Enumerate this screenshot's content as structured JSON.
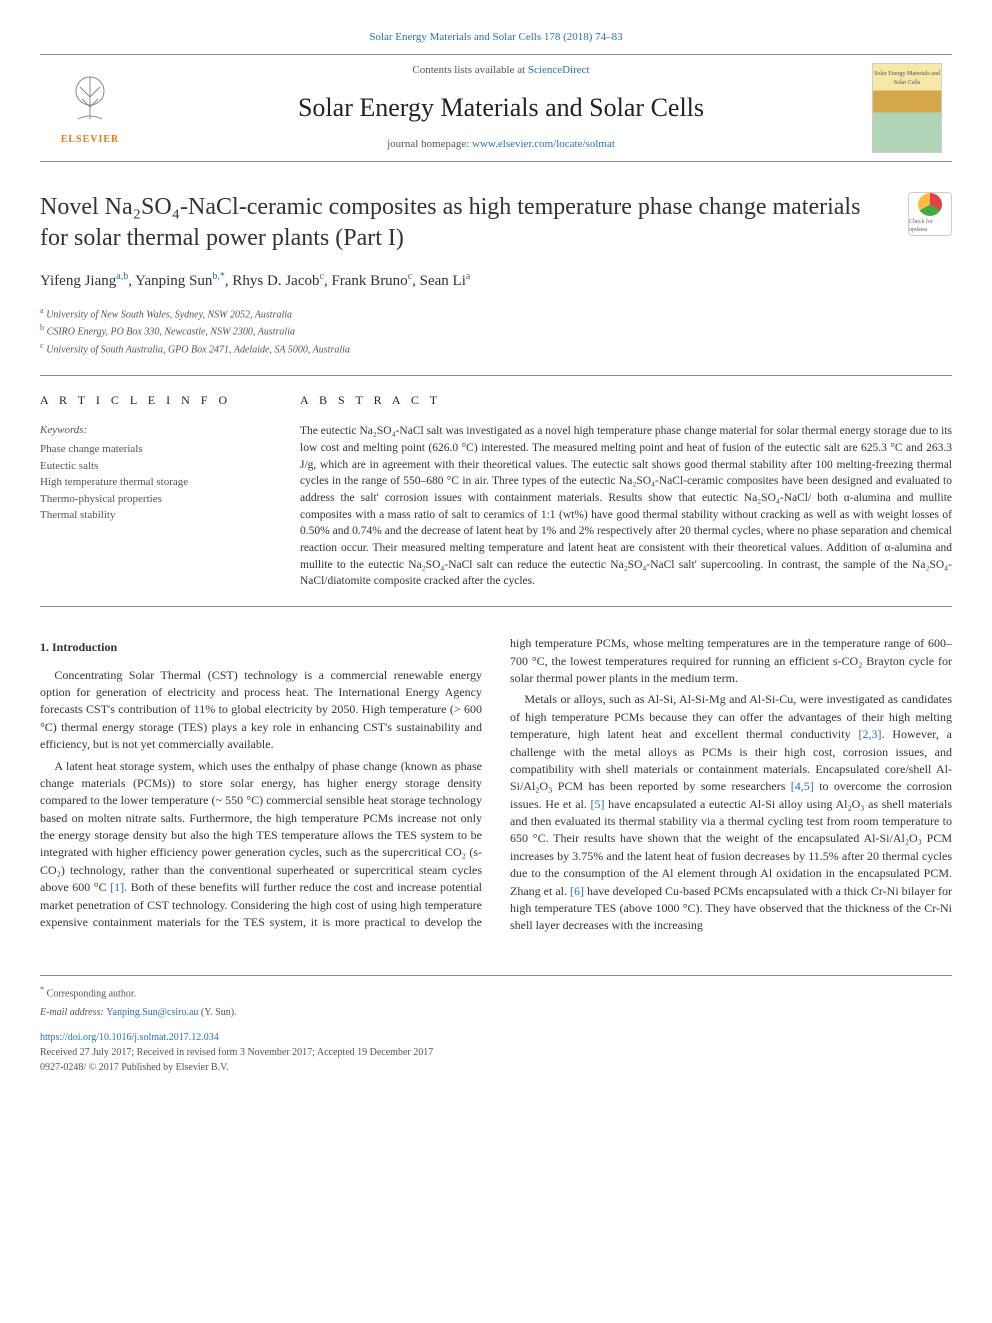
{
  "top_citation": "Solar Energy Materials and Solar Cells 178 (2018) 74–83",
  "header": {
    "contents_text": "Contents lists available at ",
    "sciencedirect": "ScienceDirect",
    "journal_name": "Solar Energy Materials and Solar Cells",
    "homepage_text": "journal homepage: ",
    "homepage_url": "www.elsevier.com/locate/solmat",
    "elsevier_label": "ELSEVIER",
    "cover_label": "Solar Energy Materials and Solar Cells"
  },
  "title": "Novel Na₂SO₄-NaCl-ceramic composites as high temperature phase change materials for solar thermal power plants (Part I)",
  "check_updates_label": "Check for updates",
  "authors_html": "Yifeng Jiang<sup>a,b</sup>, Yanping Sun<sup>b,*</sup>, Rhys D. Jacob<sup>c</sup>, Frank Bruno<sup>c</sup>, Sean Li<sup>a</sup>",
  "affiliations": [
    {
      "sup": "a",
      "text": "University of New South Wales, Sydney, NSW 2052, Australia"
    },
    {
      "sup": "b",
      "text": "CSIRO Energy, PO Box 330, Newcastle, NSW 2300, Australia"
    },
    {
      "sup": "c",
      "text": "University of South Australia, GPO Box 2471, Adelaide, SA 5000, Australia"
    }
  ],
  "article_info": {
    "heading": "A R T I C L E  I N F O",
    "keywords_label": "Keywords:",
    "keywords": [
      "Phase change materials",
      "Eutectic salts",
      "High temperature thermal storage",
      "Thermo-physical properties",
      "Thermal stability"
    ]
  },
  "abstract": {
    "heading": "A B S T R A C T",
    "text": "The eutectic Na₂SO₄-NaCl salt was investigated as a novel high temperature phase change material for solar thermal energy storage due to its low cost and melting point (626.0 °C) interested. The measured melting point and heat of fusion of the eutectic salt are 625.3 °C and 263.3 J/g, which are in agreement with their theoretical values. The eutectic salt shows good thermal stability after 100 melting-freezing thermal cycles in the range of 550–680 °C in air. Three types of the eutectic Na₂SO₄-NaCl-ceramic composites have been designed and evaluated to address the salt' corrosion issues with containment materials. Results show that eutectic Na₂SO₄-NaCl/ both α-alumina and mullite composites with a mass ratio of salt to ceramics of 1:1 (wt%) have good thermal stability without cracking as well as with weight losses of 0.50% and 0.74% and the decrease of latent heat by 1% and 2% respectively after 20 thermal cycles, where no phase separation and chemical reaction occur. Their measured melting temperature and latent heat are consistent with their theoretical values. Addition of α-alumina and mullite to the eutectic Na₂SO₄-NaCl salt can reduce the eutectic Na₂SO₄-NaCl salt' supercooling. In contrast, the sample of the Na₂SO₄-NaCl/diatomite composite cracked after the cycles."
  },
  "body": {
    "intro_heading": "1. Introduction",
    "p1": "Concentrating Solar Thermal (CST) technology is a commercial renewable energy option for generation of electricity and process heat. The International Energy Agency forecasts CST's contribution of 11% to global electricity by 2050. High temperature (> 600 °C) thermal energy storage (TES) plays a key role in enhancing CST's sustainability and efficiency, but is not yet commercially available.",
    "p2_a": "A latent heat storage system, which uses the enthalpy of phase change (known as phase change materials (PCMs)) to store solar energy, has higher energy storage density compared to the lower temperature (~ 550 °C) commercial sensible heat storage technology based on molten nitrate salts. Furthermore, the high temperature PCMs increase not only the energy storage density but also the high TES temperature allows the TES system to be integrated with higher efficiency power generation cycles, such as the supercritical CO₂ (s-CO₂) technology, rather than the conventional superheated or supercritical steam cycles above 600 °C ",
    "p2_cite1": "[1]",
    "p2_b": ". Both of these benefits will further reduce the cost and increase potential market penetration of CST technology. Considering the high cost of using high temperature expensive containment materials for the TES system, it is more practical to develop the high temperature PCMs, whose melting temperatures are in the temperature range of 600–700 °C, the lowest temperatures required for running an efficient s-CO₂ Brayton cycle for solar thermal power plants in the medium term.",
    "p3_a": "Metals or alloys, such as Al-Si, Al-Si-Mg and Al-Si-Cu, were investigated as candidates of high temperature PCMs because they can offer the advantages of their high melting temperature, high latent heat and excellent thermal conductivity ",
    "p3_cite1": "[2,3]",
    "p3_b": ". However, a challenge with the metal alloys as PCMs is their high cost, corrosion issues, and compatibility with shell materials or containment materials. Encapsulated core/shell Al-Si/Al₂O₃ PCM has been reported by some researchers ",
    "p3_cite2": "[4,5]",
    "p3_c": " to overcome the corrosion issues. He et al. ",
    "p3_cite3": "[5]",
    "p3_d": " have encapsulated a eutectic Al-Si alloy using Al₂O₃ as shell materials and then evaluated its thermal stability via a thermal cycling test from room temperature to 650 °C. Their results have shown that the weight of the encapsulated Al-Si/Al₂O₃ PCM increases by 3.75% and the latent heat of fusion decreases by 11.5% after 20 thermal cycles due to the consumption of the Al element through Al oxidation in the encapsulated PCM. Zhang et al. ",
    "p3_cite4": "[6]",
    "p3_e": " have developed Cu-based PCMs encapsulated with a thick Cr-Ni bilayer for high temperature TES (above 1000 °C). They have observed that the thickness of the Cr-Ni shell layer decreases with the increasing"
  },
  "footer": {
    "corr_marker": "*",
    "corr_text": "Corresponding author.",
    "email_label": "E-mail address: ",
    "email": "Yanping.Sun@csiro.au",
    "email_suffix": " (Y. Sun).",
    "doi": "https://doi.org/10.1016/j.solmat.2017.12.034",
    "received": "Received 27 July 2017; Received in revised form 3 November 2017; Accepted 19 December 2017",
    "copyright": "0927-0248/ © 2017 Published by Elsevier B.V."
  },
  "colors": {
    "link": "#2a6fb5",
    "text": "#333333",
    "muted": "#555555",
    "rule": "#888888",
    "elsevier_orange": "#e67817"
  }
}
